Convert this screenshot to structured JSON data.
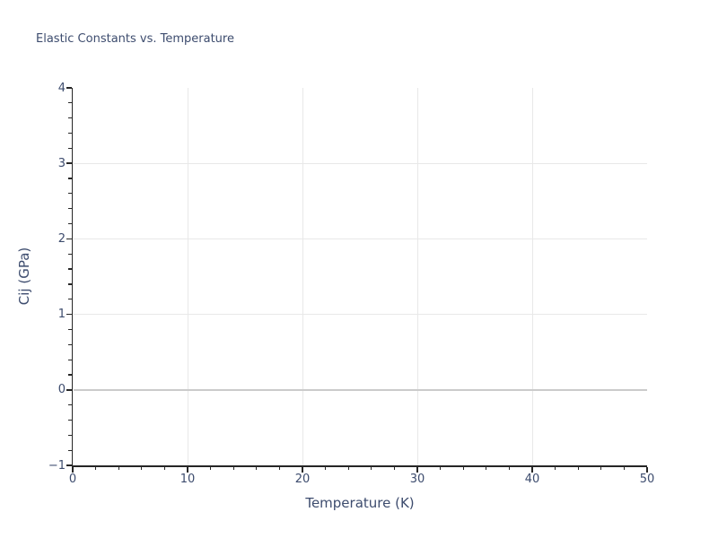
{
  "page": {
    "background": "#ffffff"
  },
  "chart_data": {
    "type": "line",
    "title": "Elastic Constants vs. Temperature",
    "xlabel": "Temperature (K)",
    "ylabel": "Cij (GPa)",
    "xlim": [
      0,
      50
    ],
    "ylim": [
      -1,
      4
    ],
    "x_major_ticks": [
      0,
      10,
      20,
      30,
      40,
      50
    ],
    "x_tick_labels": [
      "0",
      "10",
      "20",
      "30",
      "40",
      "50"
    ],
    "x_minor_tick_step": 2,
    "y_major_ticks": [
      -1,
      0,
      1,
      2,
      3,
      4
    ],
    "y_tick_labels": [
      "−1",
      "0",
      "1",
      "2",
      "3",
      "4"
    ],
    "y_minor_tick_step": 0.2,
    "x_gridlines": [
      10,
      20,
      30,
      40
    ],
    "y_gridlines": [
      0,
      1,
      2,
      3
    ],
    "zero_gridline_value": 0,
    "grid": true,
    "legend": null,
    "series": []
  },
  "colors": {
    "title_text": "#3d4c6e",
    "tick_label_text": "#3d4c6e",
    "axis_spine": "#262626",
    "gridline": "#e8e8e8",
    "zero_gridline": "#cbcbcb",
    "background": "#ffffff"
  }
}
